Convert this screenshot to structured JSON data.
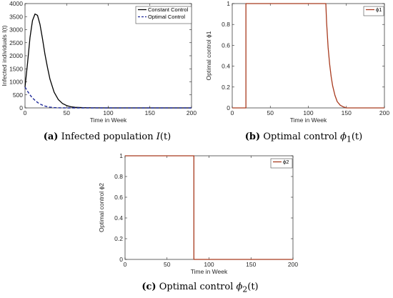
{
  "chart_data": [
    {
      "id": "a",
      "type": "line",
      "x": [
        0,
        3,
        6,
        9,
        12,
        15,
        18,
        21,
        24,
        27,
        30,
        35,
        40,
        45,
        50,
        55,
        60,
        70,
        80,
        100,
        150,
        200
      ],
      "series": [
        {
          "name": "Constant Control",
          "style": "solid",
          "color": "#000000",
          "values": [
            800,
            1700,
            2700,
            3350,
            3600,
            3550,
            3200,
            2650,
            2050,
            1550,
            1100,
            600,
            320,
            170,
            90,
            45,
            22,
            8,
            3,
            0,
            0,
            0
          ]
        },
        {
          "name": "Optimal Control",
          "style": "dashed",
          "color": "#1f2a99",
          "values": [
            800,
            640,
            500,
            380,
            290,
            210,
            150,
            105,
            70,
            45,
            28,
            12,
            5,
            2,
            0,
            0,
            0,
            0,
            0,
            0,
            0,
            0
          ]
        }
      ],
      "xlabel": "Time in Week",
      "ylabel": "Infected individuals I(t)",
      "xlim": [
        0,
        200
      ],
      "ylim": [
        0,
        4000
      ],
      "xticks": [
        "0",
        "50",
        "100",
        "150",
        "200"
      ],
      "yticks": [
        "0",
        "500",
        "1000",
        "1500",
        "2000",
        "2500",
        "3000",
        "3500",
        "4000"
      ],
      "legend_position": "top-right",
      "grid": false
    },
    {
      "id": "b",
      "type": "line",
      "x": [
        0,
        18,
        18,
        123,
        124,
        126,
        128,
        130,
        132,
        135,
        138,
        142,
        146,
        150,
        200
      ],
      "series": [
        {
          "name": "ϕ1",
          "style": "solid",
          "color": "#a83a1e",
          "values": [
            0,
            0,
            1,
            1,
            0.82,
            0.58,
            0.42,
            0.3,
            0.21,
            0.12,
            0.06,
            0.025,
            0.01,
            0,
            0
          ]
        }
      ],
      "xlabel": "Time in Week",
      "ylabel": "Optimal control ϕ1",
      "xlim": [
        0,
        200
      ],
      "ylim": [
        0,
        1
      ],
      "xticks": [
        "0",
        "50",
        "100",
        "150",
        "200"
      ],
      "yticks": [
        "0",
        "0.2",
        "0.4",
        "0.6",
        "0.8",
        "1"
      ],
      "legend_position": "top-right",
      "grid": false
    },
    {
      "id": "c",
      "type": "line",
      "x": [
        0,
        82,
        82,
        200
      ],
      "series": [
        {
          "name": "ϕ2",
          "style": "solid",
          "color": "#a83a1e",
          "values": [
            1,
            1,
            0,
            0
          ]
        }
      ],
      "xlabel": "Time in Week",
      "ylabel": "Optimal control ϕ2",
      "xlim": [
        0,
        200
      ],
      "ylim": [
        0,
        1
      ],
      "xticks": [
        "0",
        "50",
        "100",
        "150",
        "200"
      ],
      "yticks": [
        "0",
        "0.2",
        "0.4",
        "0.6",
        "0.8",
        "1"
      ],
      "legend_position": "top-right",
      "grid": false
    }
  ],
  "captions": {
    "a": {
      "tag": "(a)",
      "text": "Infected population ",
      "math": "I",
      "tail": "(t)"
    },
    "b": {
      "tag": "(b)",
      "text": "Optimal control ",
      "math": "ϕ",
      "sub": "1",
      "tail": "(t)"
    },
    "c": {
      "tag": "(c)",
      "text": "Optimal control ",
      "math": "ϕ",
      "sub": "2",
      "tail": "(t)"
    }
  }
}
